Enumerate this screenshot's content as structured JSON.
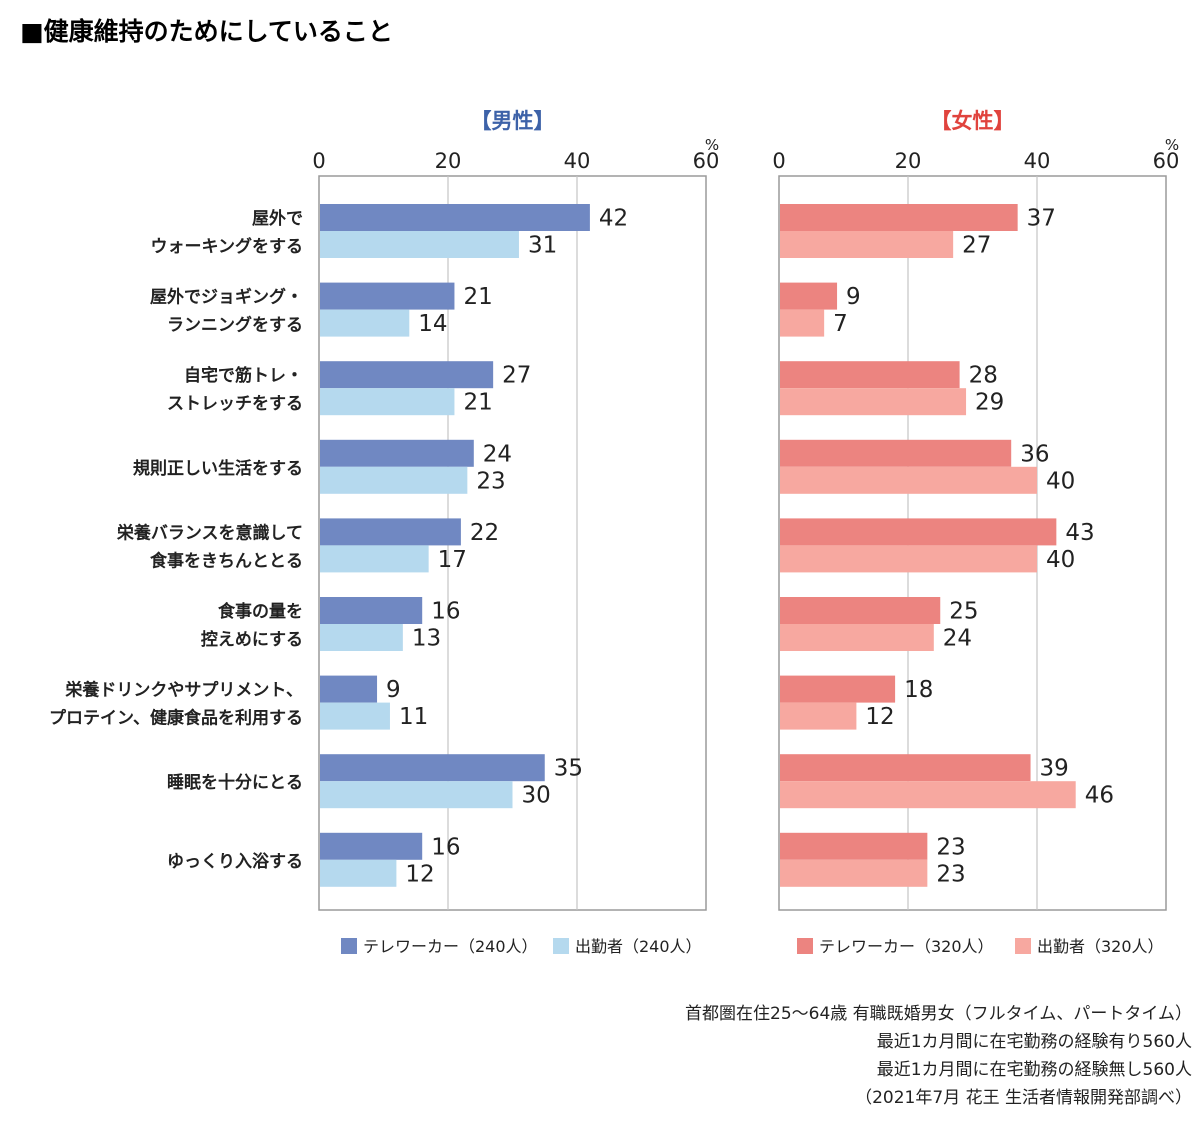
{
  "page_title": "■健康維持のためにしていること",
  "categories": [
    [
      "屋外で",
      "ウォーキングをする"
    ],
    [
      "屋外でジョギング・",
      "ランニングをする"
    ],
    [
      "自宅で筋トレ・",
      "ストレッチをする"
    ],
    [
      "規則正しい生活をする"
    ],
    [
      "栄養バランスを意識して",
      "食事をきちんととる"
    ],
    [
      "食事の量を",
      "控えめにする"
    ],
    [
      "栄養ドリンクやサプリメント、",
      "プロテイン、健康食品を利用する"
    ],
    [
      "睡眠を十分にとる"
    ],
    [
      "ゆっくり入浴する"
    ]
  ],
  "chart_data": [
    {
      "type": "bar",
      "orientation": "horizontal",
      "title": "【男性】",
      "unit": "%",
      "xlim": [
        0,
        60
      ],
      "ticks": [
        0,
        20,
        40,
        60
      ],
      "series": [
        {
          "name": "テレワーカー（240人）",
          "color": "#7088c2",
          "values": [
            42,
            21,
            27,
            24,
            22,
            16,
            9,
            35,
            16
          ]
        },
        {
          "name": "出勤者（240人）",
          "color": "#b5d9ee",
          "values": [
            31,
            14,
            21,
            23,
            17,
            13,
            11,
            30,
            12
          ]
        }
      ]
    },
    {
      "type": "bar",
      "orientation": "horizontal",
      "title": "【女性】",
      "unit": "%",
      "xlim": [
        0,
        60
      ],
      "ticks": [
        0,
        20,
        40,
        60
      ],
      "series": [
        {
          "name": "テレワーカー（320人）",
          "color": "#ec8480",
          "values": [
            37,
            9,
            28,
            36,
            43,
            25,
            18,
            39,
            23
          ]
        },
        {
          "name": "出勤者（320人）",
          "color": "#f7a8a0",
          "values": [
            27,
            7,
            29,
            40,
            40,
            24,
            12,
            46,
            23
          ]
        }
      ]
    }
  ],
  "panel_title_colors": [
    "#3d62a8",
    "#e0433d"
  ],
  "footnotes": [
    "首都圏在住25～64歳 有職既婚男女（フルタイム、パートタイム）",
    "最近1カ月間に在宅勤務の経験有り560人",
    "最近1カ月間に在宅勤務の経験無し560人",
    "（2021年7月 花王 生活者情報開発部調べ）"
  ]
}
